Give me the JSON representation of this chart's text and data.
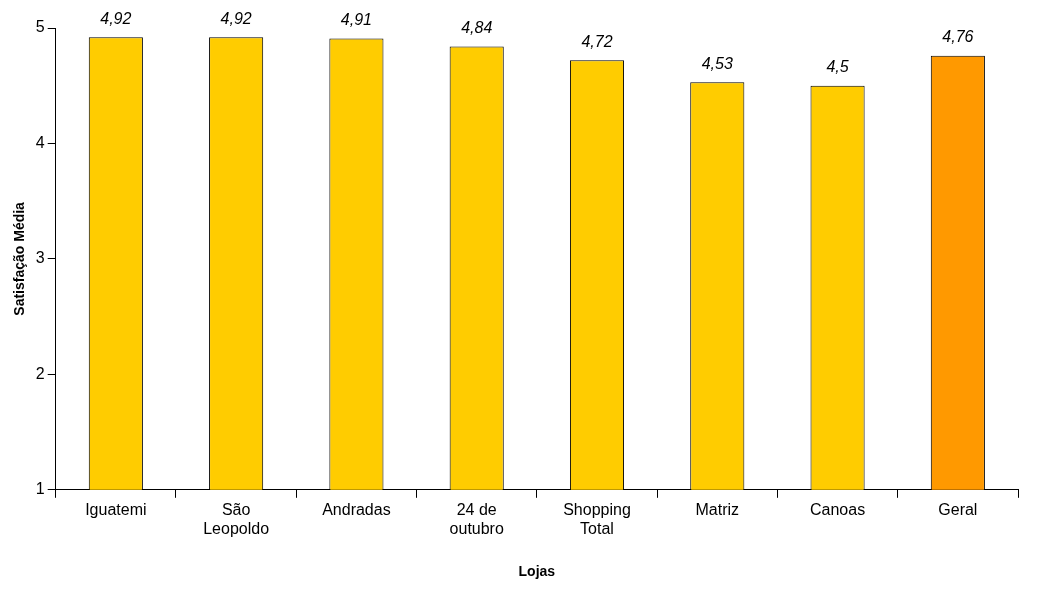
{
  "chart_data": {
    "type": "bar",
    "xlabel": "Lojas",
    "ylabel": "Satisfação Média",
    "categories": [
      "Iguatemi",
      "São Leopoldo",
      "Andradas",
      "24 de outubro",
      "Shopping Total",
      "Matriz",
      "Canoas",
      "Geral"
    ],
    "values": [
      4.92,
      4.92,
      4.91,
      4.84,
      4.72,
      4.53,
      4.5,
      4.76
    ],
    "colors": [
      "#ffcc00",
      "#ffcc00",
      "#ffcc00",
      "#ffcc00",
      "#ffcc00",
      "#ffcc00",
      "#ffcc00",
      "#ff9900"
    ],
    "value_labels": [
      "4,92",
      "4,92",
      "4,91",
      "4,84",
      "4,72",
      "4,53",
      "4,5",
      "4,76"
    ],
    "ylim": [
      1,
      5
    ],
    "yticks": [
      1,
      2,
      3,
      4,
      5
    ],
    "grid": false,
    "legend": false
  }
}
